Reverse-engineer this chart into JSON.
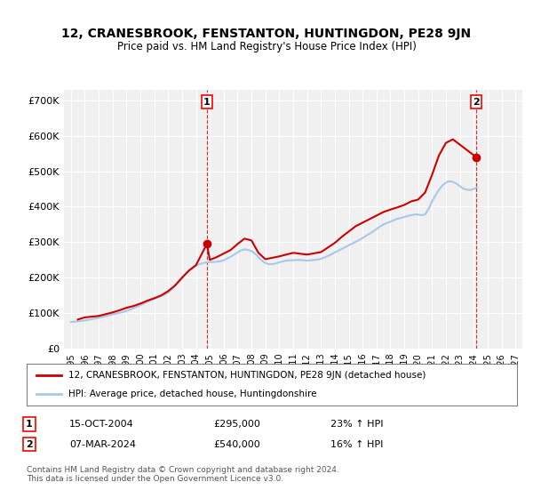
{
  "title": "12, CRANESBROOK, FENSTANTON, HUNTINGDON, PE28 9JN",
  "subtitle": "Price paid vs. HM Land Registry's House Price Index (HPI)",
  "ylabel": "",
  "background_color": "#ffffff",
  "plot_bg_color": "#f0f0f0",
  "grid_color": "#ffffff",
  "hpi_color": "#a8c8e8",
  "price_color": "#cc0000",
  "dashed_color": "#cc0000",
  "transaction1_x": 2004.79,
  "transaction1_y": 295000,
  "transaction2_x": 2024.18,
  "transaction2_y": 540000,
  "ylim": [
    0,
    730000
  ],
  "xlim": [
    1994.5,
    2027.5
  ],
  "yticks": [
    0,
    100000,
    200000,
    300000,
    400000,
    500000,
    600000,
    700000
  ],
  "ytick_labels": [
    "£0",
    "£100K",
    "£200K",
    "£300K",
    "£400K",
    "£500K",
    "£600K",
    "£700K"
  ],
  "xticks": [
    1995,
    1996,
    1997,
    1998,
    1999,
    2000,
    2001,
    2002,
    2003,
    2004,
    2005,
    2006,
    2007,
    2008,
    2009,
    2010,
    2011,
    2012,
    2013,
    2014,
    2015,
    2016,
    2017,
    2018,
    2019,
    2020,
    2021,
    2022,
    2023,
    2024,
    2025,
    2026,
    2027
  ],
  "legend_price_label": "12, CRANESBROOK, FENSTANTON, HUNTINGDON, PE28 9JN (detached house)",
  "legend_hpi_label": "HPI: Average price, detached house, Huntingdonshire",
  "annotation1_label": "1",
  "annotation1_date": "15-OCT-2004",
  "annotation1_price": "£295,000",
  "annotation1_hpi": "23% ↑ HPI",
  "annotation2_label": "2",
  "annotation2_date": "07-MAR-2024",
  "annotation2_price": "£540,000",
  "annotation2_hpi": "16% ↑ HPI",
  "footer": "Contains HM Land Registry data © Crown copyright and database right 2024.\nThis data is licensed under the Open Government Licence v3.0.",
  "hpi_years": [
    1995.0,
    1995.25,
    1995.5,
    1995.75,
    1996.0,
    1996.25,
    1996.5,
    1996.75,
    1997.0,
    1997.25,
    1997.5,
    1997.75,
    1998.0,
    1998.25,
    1998.5,
    1998.75,
    1999.0,
    1999.25,
    1999.5,
    1999.75,
    2000.0,
    2000.25,
    2000.5,
    2000.75,
    2001.0,
    2001.25,
    2001.5,
    2001.75,
    2002.0,
    2002.25,
    2002.5,
    2002.75,
    2003.0,
    2003.25,
    2003.5,
    2003.75,
    2004.0,
    2004.25,
    2004.5,
    2004.75,
    2005.0,
    2005.25,
    2005.5,
    2005.75,
    2006.0,
    2006.25,
    2006.5,
    2006.75,
    2007.0,
    2007.25,
    2007.5,
    2007.75,
    2008.0,
    2008.25,
    2008.5,
    2008.75,
    2009.0,
    2009.25,
    2009.5,
    2009.75,
    2010.0,
    2010.25,
    2010.5,
    2010.75,
    2011.0,
    2011.25,
    2011.5,
    2011.75,
    2012.0,
    2012.25,
    2012.5,
    2012.75,
    2013.0,
    2013.25,
    2013.5,
    2013.75,
    2014.0,
    2014.25,
    2014.5,
    2014.75,
    2015.0,
    2015.25,
    2015.5,
    2015.75,
    2016.0,
    2016.25,
    2016.5,
    2016.75,
    2017.0,
    2017.25,
    2017.5,
    2017.75,
    2018.0,
    2018.25,
    2018.5,
    2018.75,
    2019.0,
    2019.25,
    2019.5,
    2019.75,
    2020.0,
    2020.25,
    2020.5,
    2020.75,
    2021.0,
    2021.25,
    2021.5,
    2021.75,
    2022.0,
    2022.25,
    2022.5,
    2022.75,
    2023.0,
    2023.25,
    2023.5,
    2023.75,
    2024.0,
    2024.25
  ],
  "hpi_values": [
    75000,
    76000,
    77000,
    78000,
    79500,
    81000,
    83000,
    85000,
    87000,
    89000,
    91500,
    94000,
    96500,
    99000,
    101000,
    103000,
    106000,
    110000,
    114000,
    118000,
    122000,
    127000,
    132000,
    136000,
    140000,
    144000,
    148000,
    152000,
    158000,
    167000,
    177000,
    188000,
    198000,
    210000,
    220000,
    228000,
    234000,
    238000,
    241000,
    243000,
    244000,
    244000,
    245000,
    246000,
    249000,
    254000,
    259000,
    265000,
    271000,
    277000,
    280000,
    278000,
    275000,
    268000,
    258000,
    248000,
    241000,
    238000,
    238000,
    240000,
    243000,
    246000,
    248000,
    249000,
    249000,
    250000,
    250000,
    249000,
    248000,
    249000,
    250000,
    251000,
    253000,
    257000,
    261000,
    266000,
    271000,
    276000,
    281000,
    286000,
    291000,
    296000,
    301000,
    306000,
    312000,
    318000,
    324000,
    330000,
    337000,
    344000,
    350000,
    354000,
    358000,
    362000,
    366000,
    368000,
    371000,
    374000,
    376000,
    378000,
    378000,
    376000,
    378000,
    394000,
    415000,
    432000,
    448000,
    460000,
    468000,
    472000,
    470000,
    465000,
    458000,
    451000,
    448000,
    447000,
    450000,
    455000
  ],
  "price_years": [
    1995.5,
    1996.0,
    1997.0,
    1997.5,
    1998.0,
    1998.5,
    1999.0,
    1999.5,
    2000.0,
    2000.5,
    2001.0,
    2001.5,
    2002.0,
    2002.5,
    2003.0,
    2003.5,
    2004.0,
    2004.79,
    2005.0,
    2005.5,
    2006.0,
    2006.5,
    2007.0,
    2007.5,
    2008.0,
    2008.5,
    2009.0,
    2010.0,
    2011.0,
    2012.0,
    2013.0,
    2013.5,
    2014.0,
    2014.5,
    2015.0,
    2015.5,
    2016.0,
    2016.5,
    2017.0,
    2017.5,
    2018.0,
    2018.5,
    2019.0,
    2019.5,
    2020.0,
    2020.5,
    2021.0,
    2021.5,
    2022.0,
    2022.5,
    2023.0,
    2023.5,
    2024.18
  ],
  "price_values": [
    82000,
    88000,
    92000,
    97000,
    102000,
    108000,
    115000,
    120000,
    127000,
    135000,
    142000,
    150000,
    162000,
    178000,
    200000,
    220000,
    235000,
    295000,
    250000,
    258000,
    268000,
    278000,
    295000,
    310000,
    305000,
    270000,
    252000,
    260000,
    270000,
    265000,
    272000,
    285000,
    298000,
    315000,
    330000,
    345000,
    355000,
    365000,
    375000,
    385000,
    392000,
    398000,
    405000,
    415000,
    420000,
    440000,
    490000,
    545000,
    580000,
    590000,
    575000,
    560000,
    540000
  ]
}
